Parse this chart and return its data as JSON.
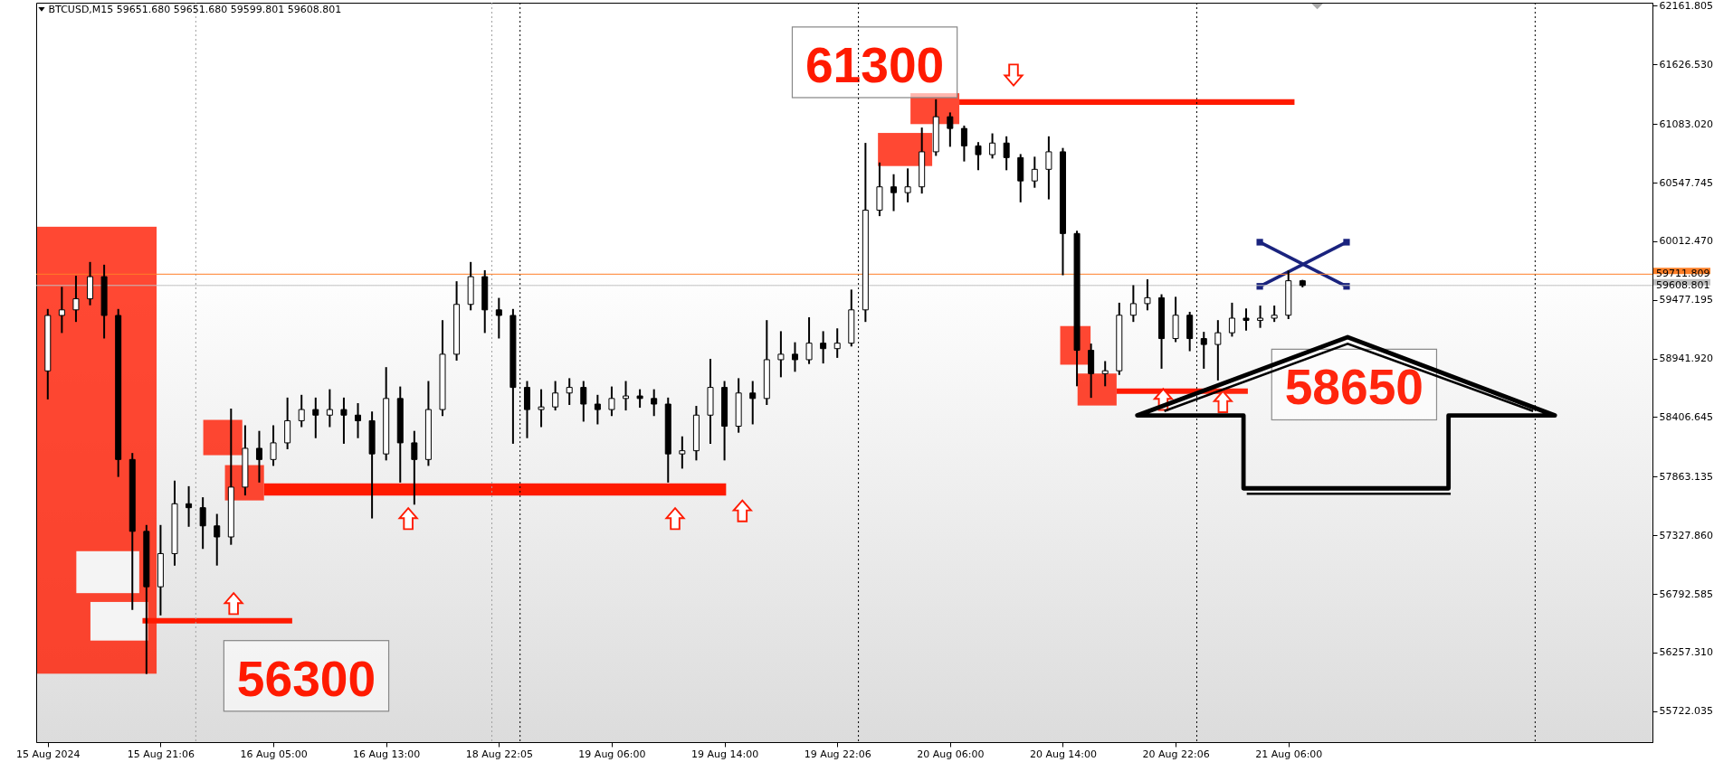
{
  "chart_data": {
    "type": "candlestick",
    "title": "BTCUSD,M15  59651.680 59651.680 59599.801 59608.801",
    "color": "#000000",
    "categories": [
      "15 Aug 2024",
      null,
      null,
      null,
      null,
      null,
      null,
      null,
      "15 Aug 21:06",
      null,
      null,
      null,
      null,
      null,
      null,
      null,
      "16 Aug 05:00",
      null,
      null,
      null,
      null,
      null,
      null,
      null,
      "16 Aug 13:00",
      null,
      null,
      null,
      null,
      null,
      null,
      null,
      "18 Aug 22:05",
      null,
      null,
      null,
      null,
      null,
      null,
      null,
      "19 Aug 06:00",
      null,
      null,
      null,
      null,
      null,
      null,
      null,
      "19 Aug 14:00",
      null,
      null,
      null,
      null,
      null,
      null,
      null,
      "19 Aug 22:06",
      null,
      null,
      null,
      null,
      null,
      null,
      null,
      "20 Aug 06:00",
      null,
      null,
      null,
      null,
      null,
      null,
      null,
      "20 Aug 14:00",
      null,
      null,
      null,
      null,
      null,
      null,
      null,
      "20 Aug 22:06",
      null,
      null,
      null,
      null,
      null,
      null,
      null,
      "21 Aug 06:00",
      null,
      null,
      null,
      null,
      null,
      null,
      null,
      null,
      null,
      null,
      null,
      null,
      null,
      null,
      null,
      null,
      null,
      null,
      null,
      null,
      null,
      null,
      null,
      null,
      null
    ],
    "ohlc": [
      [
        58829,
        59386,
        58577,
        59335
      ],
      [
        59335,
        59588,
        59183,
        59386
      ],
      [
        59386,
        59689,
        59284,
        59487
      ],
      [
        59487,
        59815,
        59436,
        59689
      ],
      [
        59689,
        59790,
        59133,
        59335
      ],
      [
        59335,
        59386,
        57869,
        58020
      ],
      [
        58020,
        58071,
        56655,
        57364
      ],
      [
        57364,
        57414,
        56070,
        56858
      ],
      [
        56858,
        57414,
        56605,
        57161
      ],
      [
        57161,
        57818,
        57060,
        57616
      ],
      [
        57616,
        57768,
        57414,
        57580
      ],
      [
        57580,
        57667,
        57212,
        57414
      ],
      [
        57414,
        57515,
        57060,
        57313
      ],
      [
        57313,
        58476,
        57250,
        57768
      ],
      [
        57768,
        58324,
        57700,
        58122
      ],
      [
        58122,
        58273,
        57818,
        58020
      ],
      [
        58020,
        58324,
        57970,
        58172
      ],
      [
        58172,
        58577,
        58122,
        58374
      ],
      [
        58374,
        58602,
        58324,
        58476
      ],
      [
        58476,
        58577,
        58223,
        58425
      ],
      [
        58425,
        58653,
        58324,
        58476
      ],
      [
        58476,
        58577,
        58172,
        58425
      ],
      [
        58425,
        58526,
        58223,
        58374
      ],
      [
        58374,
        58450,
        57490,
        58071
      ],
      [
        58071,
        58855,
        58020,
        58577
      ],
      [
        58577,
        58678,
        57818,
        58172
      ],
      [
        58172,
        58273,
        57616,
        58020
      ],
      [
        58020,
        58728,
        57970,
        58476
      ],
      [
        58476,
        59284,
        58425,
        58981
      ],
      [
        58981,
        59639,
        58931,
        59436
      ],
      [
        59436,
        59815,
        59390,
        59689
      ],
      [
        59689,
        59740,
        59183,
        59386
      ],
      [
        59386,
        59487,
        59133,
        59335
      ],
      [
        59335,
        59386,
        58172,
        58678
      ],
      [
        58678,
        58728,
        58223,
        58476
      ],
      [
        58476,
        58653,
        58324,
        58500
      ],
      [
        58500,
        58728,
        58476,
        58627
      ],
      [
        58627,
        58754,
        58526,
        58678
      ],
      [
        58678,
        58728,
        58374,
        58526
      ],
      [
        58526,
        58602,
        58349,
        58476
      ],
      [
        58476,
        58678,
        58425,
        58577
      ],
      [
        58577,
        58728,
        58476,
        58600
      ],
      [
        58600,
        58653,
        58501,
        58577
      ],
      [
        58577,
        58653,
        58425,
        58526
      ],
      [
        58526,
        58577,
        57818,
        58071
      ],
      [
        58071,
        58223,
        57945,
        58100
      ],
      [
        58100,
        58501,
        58020,
        58425
      ],
      [
        58425,
        58931,
        58172,
        58678
      ],
      [
        58678,
        58728,
        58020,
        58324
      ],
      [
        58324,
        58754,
        58273,
        58627
      ],
      [
        58627,
        58728,
        58349,
        58577
      ],
      [
        58577,
        59284,
        58526,
        58931
      ],
      [
        58931,
        59183,
        58779,
        58981
      ],
      [
        58981,
        59082,
        58829,
        58931
      ],
      [
        58931,
        59310,
        58900,
        59082
      ],
      [
        59082,
        59183,
        58905,
        59032
      ],
      [
        59032,
        59209,
        58956,
        59082
      ],
      [
        59082,
        59563,
        59060,
        59386
      ],
      [
        59386,
        60902,
        59284,
        60296
      ],
      [
        60296,
        60723,
        60250,
        60509
      ],
      [
        60509,
        60616,
        60296,
        60456
      ],
      [
        60456,
        60669,
        60376,
        60509
      ],
      [
        60509,
        61042,
        60456,
        60829
      ],
      [
        60829,
        61300,
        60800,
        61149
      ],
      [
        61149,
        61180,
        60883,
        61042
      ],
      [
        61042,
        61060,
        60749,
        60883
      ],
      [
        60883,
        60909,
        60669,
        60803
      ],
      [
        60803,
        60989,
        60776,
        60909
      ],
      [
        60909,
        60962,
        60669,
        60776
      ],
      [
        60776,
        60800,
        60376,
        60563
      ],
      [
        60563,
        60776,
        60509,
        60669
      ],
      [
        60669,
        60962,
        60403,
        60829
      ],
      [
        60829,
        60856,
        59710,
        60083
      ],
      [
        60083,
        60100,
        58697,
        59017
      ],
      [
        59017,
        59070,
        58591,
        58804
      ],
      [
        58804,
        58910,
        58697,
        58830
      ],
      [
        58830,
        59443,
        58800,
        59337
      ],
      [
        59337,
        59603,
        59284,
        59443
      ],
      [
        59443,
        59657,
        59390,
        59497
      ],
      [
        59497,
        59520,
        58857,
        59124
      ],
      [
        59124,
        59497,
        59100,
        59337
      ],
      [
        59337,
        59360,
        59017,
        59124
      ],
      [
        59124,
        59177,
        58857,
        59070
      ],
      [
        59070,
        59284,
        58750,
        59177
      ],
      [
        59177,
        59443,
        59150,
        59310
      ],
      [
        59310,
        59390,
        59204,
        59290
      ],
      [
        59290,
        59417,
        59230,
        59310
      ],
      [
        59310,
        59417,
        59284,
        59337
      ],
      [
        59337,
        59737,
        59310,
        59651.68
      ],
      [
        59651.68,
        59651.68,
        59599.801,
        59608.801
      ],
      null,
      null,
      null,
      null,
      null,
      null,
      null,
      null,
      null,
      null,
      null,
      null,
      null,
      null,
      null,
      null,
      null,
      null,
      null,
      null,
      null,
      null,
      null,
      null
    ],
    "ylim": [
      55440,
      62190
    ],
    "yticks": [
      55722.035,
      {
        "value": 56257.31,
        "label": "56257.310"
      },
      56792.585,
      {
        "value": 57327.86,
        "label": "57327.860"
      },
      57863.135,
      58406.645,
      {
        "value": 58941.92,
        "label": "58941.920"
      },
      59477.195,
      {
        "value": 60012.47,
        "label": "60012.470"
      },
      60547.745,
      {
        "value": 61083.02,
        "label": "61083.020"
      },
      {
        "value": 61626.53,
        "label": "61626.530"
      },
      62161.805
    ],
    "ref_lines": [
      {
        "axis": "y",
        "value": 59711.809,
        "label": "59711.809",
        "color": "#ff7f27"
      },
      {
        "axis": "y",
        "value": 59608.801,
        "label": "59608.801",
        "color": "#c0c0c0"
      }
    ],
    "annotations": [
      "61300",
      "58650",
      "56300"
    ]
  }
}
